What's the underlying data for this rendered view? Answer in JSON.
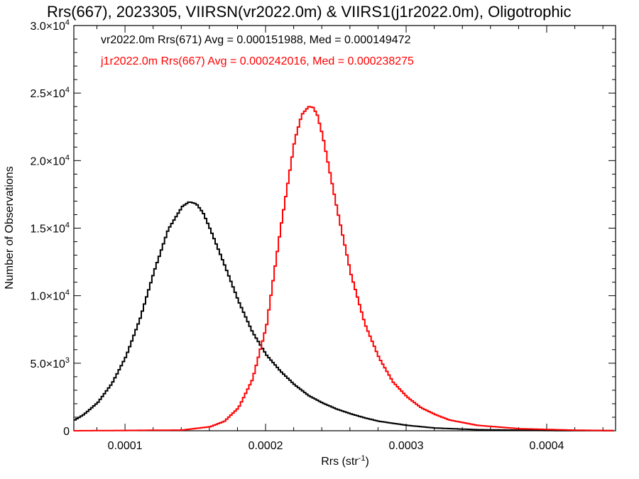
{
  "chart_data": {
    "type": "line",
    "title": "Rrs(667), 2023305, VIIRSN(vr2022.0m) & VIIRS1(j1r2022.0m), Oligotrophic",
    "xlabel": "Rrs (str",
    "xlabel_sup": "-1",
    "xlabel_close": ")",
    "ylabel": "Number of Observations",
    "xlim": [
      6.36e-05,
      0.000449
    ],
    "ylim": [
      0,
      30000
    ],
    "grid": false,
    "legend": "top-left",
    "x_ticks": [
      {
        "value": 0.0001,
        "label": "0.0001"
      },
      {
        "value": 0.0002,
        "label": "0.0002"
      },
      {
        "value": 0.0003,
        "label": "0.0003"
      },
      {
        "value": 0.0004,
        "label": "0.0004"
      }
    ],
    "y_ticks": [
      {
        "value": 0,
        "mant": "0",
        "exp": ""
      },
      {
        "value": 5000,
        "mant": "5.0×10",
        "exp": "3"
      },
      {
        "value": 10000,
        "mant": "1.0×10",
        "exp": "4"
      },
      {
        "value": 15000,
        "mant": "1.5×10",
        "exp": "4"
      },
      {
        "value": 20000,
        "mant": "2.0×10",
        "exp": "4"
      },
      {
        "value": 25000,
        "mant": "2.5×10",
        "exp": "4"
      },
      {
        "value": 30000,
        "mant": "3.0×10",
        "exp": "4"
      }
    ],
    "annotations": [
      {
        "text": "vr2022.0m Rrs(671) Avg = 0.000151988, Med = 0.000149472",
        "color": "#000000"
      },
      {
        "text": "j1r2022.0m Rrs(667) Avg = 0.000242016, Med = 0.000238275",
        "color": "#ff0000"
      }
    ],
    "series": [
      {
        "color": "#000000",
        "x": [
          6.36e-05,
          7e-05,
          8e-05,
          9e-05,
          0.0001,
          0.00011,
          0.00012,
          0.00013,
          0.00014,
          0.000145,
          0.00015,
          0.000155,
          0.00016,
          0.00017,
          0.00018,
          0.00019,
          0.0002,
          0.00021,
          0.00022,
          0.00023,
          0.00024,
          0.00025,
          0.00026,
          0.00027,
          0.00028,
          0.0003,
          0.00032,
          0.00035,
          0.0004,
          0.000449
        ],
        "y": [
          800,
          1200,
          2100,
          3500,
          5500,
          8300,
          11800,
          14900,
          16600,
          16950,
          16800,
          16100,
          14900,
          12300,
          9600,
          7300,
          5600,
          4400,
          3400,
          2600,
          2050,
          1600,
          1250,
          950,
          700,
          400,
          200,
          80,
          20,
          5
        ]
      },
      {
        "color": "#ff0000",
        "x": [
          6.36e-05,
          0.00014,
          0.00016,
          0.00017,
          0.00018,
          0.00019,
          0.0002,
          0.00021,
          0.00022,
          0.000225,
          0.00023,
          0.000233,
          0.000236,
          0.00024,
          0.00025,
          0.00026,
          0.00027,
          0.00028,
          0.00029,
          0.0003,
          0.00031,
          0.00032,
          0.00033,
          0.00035,
          0.00038,
          0.00042,
          0.000449
        ],
        "y": [
          0,
          50,
          300,
          700,
          1700,
          3800,
          7800,
          15000,
          21500,
          23400,
          24000,
          23950,
          23400,
          21800,
          16500,
          11600,
          7900,
          5400,
          3600,
          2500,
          1700,
          1200,
          800,
          400,
          150,
          40,
          10
        ]
      }
    ]
  }
}
